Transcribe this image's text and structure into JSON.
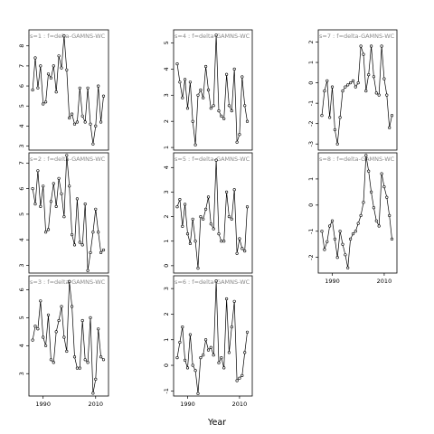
{
  "chart_data": {
    "type": "line",
    "xlabel": "Year",
    "panels": [
      {
        "label": "s=1 : f=delta-GAMNS-WC",
        "ylim": [
          2.8,
          8.8
        ],
        "yticks": [
          3,
          4,
          5,
          6,
          7,
          8
        ],
        "series": [
          {
            "x": [
              1986,
              1987,
              1988,
              1989,
              1990,
              1991,
              1992,
              1993,
              1994,
              1995,
              1996,
              1997,
              1998,
              1999,
              2000,
              2001,
              2002,
              2003,
              2004,
              2005,
              2006,
              2007,
              2008,
              2009,
              2010,
              2011,
              2012,
              2013
            ],
            "y": [
              5.8,
              7.4,
              5.9,
              7.0,
              5.1,
              5.2,
              6.6,
              6.4,
              7.0,
              5.7,
              7.5,
              6.9,
              8.5,
              6.8,
              4.4,
              4.6,
              4.1,
              4.2,
              5.9,
              4.5,
              4.2,
              5.9,
              4.1,
              3.1,
              4.0,
              6.0,
              4.2,
              5.5
            ]
          }
        ]
      },
      {
        "label": "s=2 : f=delta-GAMNS-WC",
        "ylim": [
          2.7,
          7.4
        ],
        "yticks": [
          3,
          4,
          5,
          6,
          7
        ],
        "series": [
          {
            "x": [
              1986,
              1987,
              1988,
              1989,
              1990,
              1991,
              1992,
              1993,
              1994,
              1995,
              1996,
              1997,
              1998,
              1999,
              2000,
              2001,
              2002,
              2003,
              2004,
              2005,
              2006,
              2007,
              2008,
              2009,
              2010,
              2011,
              2012,
              2013
            ],
            "y": [
              6.0,
              5.4,
              6.7,
              5.3,
              6.1,
              4.3,
              4.4,
              5.5,
              6.2,
              5.3,
              6.4,
              5.8,
              4.9,
              7.3,
              6.1,
              4.2,
              3.8,
              5.6,
              3.9,
              3.8,
              5.4,
              2.8,
              3.5,
              4.3,
              5.2,
              4.3,
              3.5,
              3.6
            ]
          }
        ]
      },
      {
        "label": "s=3 : f=delta-GAMNS-WC",
        "ylim": [
          2.2,
          6.5
        ],
        "yticks": [
          3,
          4,
          5,
          6
        ],
        "series": [
          {
            "x": [
              1986,
              1987,
              1988,
              1989,
              1990,
              1991,
              1992,
              1993,
              1994,
              1995,
              1996,
              1997,
              1998,
              1999,
              2000,
              2001,
              2002,
              2003,
              2004,
              2005,
              2006,
              2007,
              2008,
              2009,
              2010,
              2011,
              2012,
              2013
            ],
            "y": [
              4.2,
              4.7,
              4.6,
              5.6,
              4.3,
              4.0,
              5.1,
              3.5,
              3.4,
              4.5,
              4.9,
              5.4,
              4.3,
              3.8,
              6.3,
              5.4,
              3.6,
              3.2,
              3.2,
              4.9,
              3.5,
              3.4,
              5.0,
              2.3,
              2.8,
              4.6,
              3.6,
              3.5
            ]
          }
        ]
      },
      {
        "label": "s=4 : f=delta-GAMNS-WC",
        "ylim": [
          0.9,
          5.5
        ],
        "yticks": [
          1,
          2,
          3,
          4,
          5
        ],
        "series": [
          {
            "x": [
              1986,
              1987,
              1988,
              1989,
              1990,
              1991,
              1992,
              1993,
              1994,
              1995,
              1996,
              1997,
              1998,
              1999,
              2000,
              2001,
              2002,
              2003,
              2004,
              2005,
              2006,
              2007,
              2008,
              2009,
              2010,
              2011,
              2012,
              2013
            ],
            "y": [
              4.2,
              3.5,
              2.9,
              3.6,
              2.5,
              3.5,
              2.0,
              1.1,
              3.0,
              3.2,
              2.9,
              4.1,
              3.2,
              2.5,
              2.6,
              5.3,
              2.4,
              2.2,
              2.1,
              3.8,
              2.6,
              2.4,
              4.0,
              1.2,
              1.5,
              3.7,
              2.6,
              2.0
            ]
          }
        ]
      },
      {
        "label": "s=5 : f=delta-GAMNS-WC",
        "ylim": [
          -0.3,
          4.6
        ],
        "yticks": [
          0,
          1,
          2,
          3,
          4
        ],
        "series": [
          {
            "x": [
              1986,
              1987,
              1988,
              1989,
              1990,
              1991,
              1992,
              1993,
              1994,
              1995,
              1996,
              1997,
              1998,
              1999,
              2000,
              2001,
              2002,
              2003,
              2004,
              2005,
              2006,
              2007,
              2008,
              2009,
              2010,
              2011,
              2012,
              2013
            ],
            "y": [
              2.4,
              2.7,
              1.6,
              2.5,
              1.3,
              0.9,
              1.9,
              1.0,
              -0.1,
              2.0,
              1.9,
              2.3,
              2.8,
              1.7,
              1.5,
              4.3,
              1.3,
              1.0,
              1.0,
              3.0,
              2.0,
              1.9,
              3.1,
              0.5,
              1.1,
              0.7,
              0.6,
              2.4
            ]
          }
        ]
      },
      {
        "label": "s=6 : f=delta-GAMNS-WC",
        "ylim": [
          -1.2,
          3.5
        ],
        "yticks": [
          -1,
          0,
          1,
          2,
          3
        ],
        "series": [
          {
            "x": [
              1986,
              1987,
              1988,
              1989,
              1990,
              1991,
              1992,
              1993,
              1994,
              1995,
              1996,
              1997,
              1998,
              1999,
              2000,
              2001,
              2002,
              2003,
              2004,
              2005,
              2006,
              2007,
              2008,
              2009,
              2010,
              2011,
              2012,
              2013
            ],
            "y": [
              0.3,
              0.9,
              1.5,
              0.2,
              -0.1,
              1.2,
              0.0,
              -0.2,
              -1.1,
              0.3,
              0.4,
              1.0,
              0.6,
              0.7,
              0.4,
              3.3,
              0.1,
              0.3,
              -0.1,
              2.6,
              0.5,
              1.5,
              2.5,
              -0.6,
              -0.5,
              -0.4,
              0.5,
              1.3
            ]
          }
        ]
      },
      {
        "label": "s=7 : f=delta-GAMNS-WC",
        "ylim": [
          -3.3,
          2.6
        ],
        "yticks": [
          -3,
          -2,
          -1,
          0,
          1,
          2
        ],
        "series": [
          {
            "x": [
              1986,
              1987,
              1988,
              1989,
              1990,
              1991,
              1992,
              1993,
              1994,
              1995,
              1996,
              1997,
              1998,
              1999,
              2000,
              2001,
              2002,
              2003,
              2004,
              2005,
              2006,
              2007,
              2008,
              2009,
              2010,
              2011,
              2012,
              2013
            ],
            "y": [
              -1.6,
              -0.4,
              0.1,
              -1.7,
              -0.2,
              -2.3,
              -3.0,
              -1.7,
              -0.4,
              -0.2,
              -0.1,
              0.0,
              0.1,
              -0.2,
              0.0,
              1.8,
              1.4,
              -0.4,
              0.4,
              1.8,
              0.3,
              -0.5,
              -0.6,
              1.8,
              0.2,
              -0.6,
              -2.2,
              -1.6
            ]
          }
        ]
      },
      {
        "label": "s=8 : f=delta-GAMNS-WC",
        "ylim": [
          -2.6,
          2.0
        ],
        "yticks": [
          -2,
          -1,
          0,
          1
        ],
        "series": [
          {
            "x": [
              1986,
              1987,
              1988,
              1989,
              1990,
              1991,
              1992,
              1993,
              1994,
              1995,
              1996,
              1997,
              1998,
              1999,
              2000,
              2001,
              2002,
              2003,
              2004,
              2005,
              2006,
              2007,
              2008,
              2009,
              2010,
              2011,
              2012,
              2013
            ],
            "y": [
              -1.0,
              -1.7,
              -1.4,
              -0.8,
              -0.6,
              -1.3,
              -2.0,
              -1.0,
              -1.5,
              -1.9,
              -2.4,
              -1.3,
              -1.1,
              -1.0,
              -0.7,
              -0.4,
              0.1,
              1.9,
              1.3,
              0.5,
              -0.1,
              -0.6,
              -0.8,
              1.2,
              0.7,
              0.3,
              -0.4,
              -1.3
            ]
          }
        ]
      }
    ],
    "xlim": [
      1984.6,
      2014.9
    ],
    "xticks": [
      1990,
      2010
    ]
  }
}
